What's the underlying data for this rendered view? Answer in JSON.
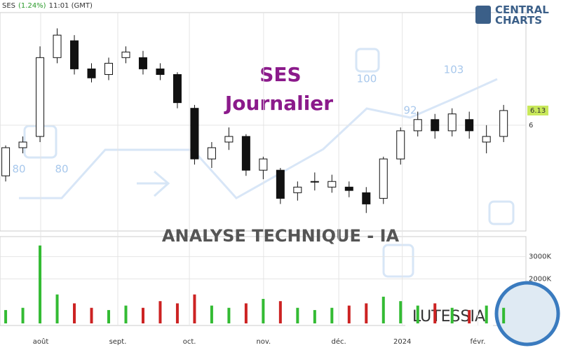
{
  "header": {
    "symbol": "SES",
    "change": "(1.24%)",
    "time": "11:01 (GMT)"
  },
  "logo": {
    "line1": "CENTRAL",
    "line2": "CHARTS"
  },
  "watermark": {
    "labels": [
      "80",
      "80",
      "100",
      "92",
      "103"
    ],
    "banner": "ANALYSE TECHNIQUE - IA",
    "brand": "LUTESSIA"
  },
  "chart_data": [
    {
      "type": "candlestick",
      "title": "SES",
      "subtitle": "Journalier",
      "candles": {
        "open": [
          5.55,
          5.8,
          5.9,
          6.6,
          6.75,
          6.5,
          6.45,
          6.6,
          6.6,
          6.5,
          6.45,
          6.15,
          5.7,
          5.85,
          5.9,
          5.6,
          5.6,
          5.4,
          5.5,
          5.45,
          5.45,
          5.4,
          5.35,
          5.7,
          5.95,
          6.05,
          5.95,
          6.05,
          5.85,
          5.9
        ],
        "high": [
          5.82,
          5.9,
          6.7,
          6.86,
          6.8,
          6.55,
          6.6,
          6.7,
          6.66,
          6.55,
          6.47,
          6.18,
          5.85,
          5.98,
          5.92,
          5.72,
          5.62,
          5.5,
          5.58,
          5.56,
          5.5,
          5.45,
          5.72,
          5.98,
          6.12,
          6.1,
          6.15,
          6.12,
          6.0,
          6.18
        ],
        "low": [
          5.5,
          5.75,
          5.85,
          6.55,
          6.45,
          6.38,
          6.4,
          6.55,
          6.45,
          6.4,
          6.15,
          5.65,
          5.62,
          5.78,
          5.55,
          5.52,
          5.3,
          5.33,
          5.42,
          5.4,
          5.36,
          5.22,
          5.3,
          5.65,
          5.9,
          5.88,
          5.9,
          5.88,
          5.75,
          5.85
        ],
        "close": [
          5.8,
          5.85,
          6.6,
          6.8,
          6.5,
          6.42,
          6.55,
          6.65,
          6.5,
          6.45,
          6.2,
          5.7,
          5.8,
          5.9,
          5.6,
          5.7,
          5.35,
          5.45,
          5.5,
          5.5,
          5.42,
          5.3,
          5.7,
          5.95,
          6.05,
          5.95,
          6.1,
          5.95,
          5.9,
          6.13
        ]
      },
      "up_color": "#ffffff",
      "down_color": "#111111",
      "last_color": "#c8e85a",
      "xlim": [
        -0.33,
        30.3
      ],
      "xticks": [
        {
          "value": 2.04,
          "label": "août"
        },
        {
          "value": 6.53,
          "label": "sept."
        },
        {
          "value": 10.7,
          "label": "oct."
        },
        {
          "value": 15.02,
          "label": "nov."
        },
        {
          "value": 19.4,
          "label": "déc."
        },
        {
          "value": 23.1,
          "label": "2024"
        },
        {
          "value": 27.5,
          "label": "févr."
        }
      ],
      "ylim": [
        5.06,
        7.0
      ],
      "yticks": [
        6
      ],
      "grid": true
    },
    {
      "type": "volume",
      "values": [
        600000,
        700000,
        3500000,
        1300000,
        900000,
        700000,
        600000,
        800000,
        700000,
        1000000,
        900000,
        1300000,
        800000,
        700000,
        900000,
        1100000,
        1000000,
        700000,
        600000,
        700000,
        800000,
        900000,
        1200000,
        1000000,
        800000,
        900000,
        700000,
        600000,
        800000,
        700000
      ],
      "up_color": "#33bb33",
      "down_color": "#cc2222",
      "ylim": [
        0,
        3900000
      ],
      "yticks": [
        {
          "value": 3000000,
          "label": "3000K"
        },
        {
          "value": 2000000,
          "label": "2000K"
        }
      ]
    }
  ]
}
